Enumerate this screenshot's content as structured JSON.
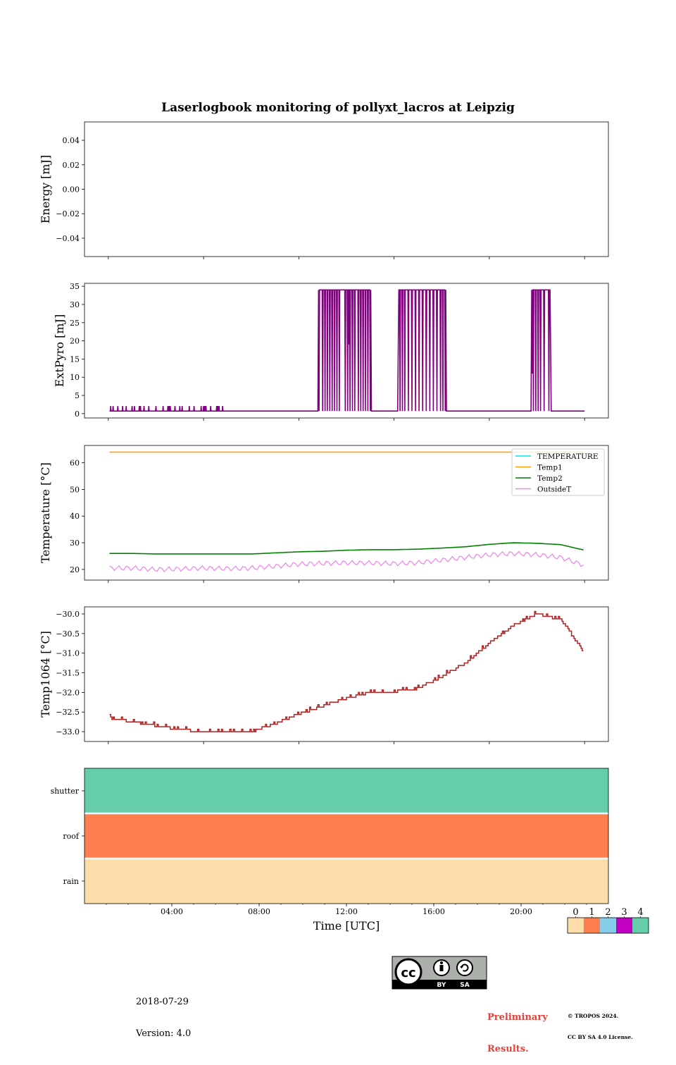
{
  "chart_data": {
    "type": "line",
    "title": "Laserlogbook monitoring of pollyxt_lacros at Leipzig",
    "panels": [
      {
        "id": "energy",
        "type": "line",
        "ylabel": "Energy [mJ]",
        "ylim": [
          -0.055,
          0.055
        ],
        "yticks": [
          -0.04,
          -0.02,
          0.0,
          0.02,
          0.04
        ],
        "ytick_labels": [
          "−0.04",
          "−0.02",
          "0.00",
          "0.02",
          "0.04"
        ],
        "series": []
      },
      {
        "id": "extpyro",
        "type": "line",
        "ylabel": "ExtPyro [mJ]",
        "ylim": [
          -1.2,
          35.8
        ],
        "yticks": [
          0,
          5,
          10,
          15,
          20,
          25,
          30,
          35
        ],
        "ytick_labels": [
          "0",
          "5",
          "10",
          "15",
          "20",
          "25",
          "30",
          "35"
        ],
        "series": [
          {
            "color": "#800080",
            "baseline": 0.7,
            "high": 34,
            "blips": [
              0.1,
              0.2,
              0.4,
              0.6,
              0.75,
              1.0,
              1.1,
              1.3,
              1.35,
              1.42,
              1.5,
              1.7,
              2.0,
              2.3,
              2.5,
              2.55,
              2.6,
              2.8,
              3.0,
              3.1,
              3.4,
              3.6,
              3.9,
              4.0,
              4.05,
              4.1,
              4.3,
              4.55,
              4.6,
              4.65,
              4.8
            ],
            "high_windows": [
              [
                8.8,
                11.05
              ],
              [
                12.2,
                14.2
              ],
              [
                17.8,
                18.6
              ]
            ],
            "dropouts": [
              8.85,
              8.92,
              9.0,
              9.1,
              9.2,
              9.3,
              9.4,
              9.5,
              9.6,
              9.7,
              9.82,
              9.95,
              10.05,
              10.15,
              10.25,
              10.35,
              10.5,
              10.6,
              10.7,
              10.8,
              10.9,
              11.0,
              12.25,
              12.35,
              12.45,
              12.6,
              12.75,
              12.9,
              13.05,
              13.2,
              13.35,
              13.5,
              13.65,
              13.8,
              13.95,
              14.05,
              14.15,
              17.85,
              17.95,
              18.05,
              18.15,
              18.3,
              18.5
            ],
            "partial_dips": [
              [
                9.7,
                23
              ],
              [
                10.1,
                19
              ],
              [
                10.6,
                24
              ],
              [
                13.92,
                14
              ],
              [
                14.12,
                4
              ],
              [
                17.8,
                11
              ]
            ]
          }
        ]
      },
      {
        "id": "temperature",
        "type": "line",
        "ylabel": "Temperature [°C]",
        "ylim": [
          16.0,
          66.5
        ],
        "yticks": [
          20,
          30,
          40,
          50,
          60
        ],
        "ytick_labels": [
          "20",
          "30",
          "40",
          "50",
          "60"
        ],
        "legend": {
          "loc": "upper right",
          "entries": [
            "TEMPERATURE",
            "Temp1",
            "Temp2",
            "OutsideT"
          ]
        },
        "series": [
          {
            "name": "TEMPERATURE",
            "color": "#00e5e5",
            "hours": [],
            "values": []
          },
          {
            "name": "Temp1",
            "color": "#ffa500",
            "hours": [
              0.05,
              20.0
            ],
            "values": [
              64,
              64
            ]
          },
          {
            "name": "Temp2",
            "color": "#008000",
            "hours": [
              0.05,
              1,
              2,
              3,
              4,
              5,
              6,
              7,
              8,
              9,
              10,
              11,
              12,
              13,
              14,
              15,
              16,
              17,
              18,
              19,
              20,
              21,
              22,
              23.0
            ],
            "values": [
              26.0,
              26.0,
              25.8,
              25.8,
              25.8,
              25.8,
              25.8,
              26.2,
              26.6,
              26.8,
              27.2,
              27.4,
              27.4,
              27.6,
              28.0,
              28.5,
              29.4,
              30.0,
              29.8,
              29.3,
              27.2,
              26.5,
              26.2,
              26.0
            ]
          },
          {
            "name": "OutsideT",
            "color": "#ee82ee",
            "hours": [
              0.05,
              1,
              2,
              3,
              4,
              5,
              6,
              7,
              8,
              9,
              10,
              11,
              12,
              13,
              14,
              15,
              16,
              17,
              18,
              19,
              20,
              21,
              22,
              23.0
            ],
            "values": [
              20.5,
              20.5,
              20.0,
              20.2,
              20.5,
              20.3,
              20.5,
              21.2,
              22.0,
              22.3,
              22.5,
              22.4,
              22.2,
              22.5,
              23.5,
              24.5,
              25.5,
              26.0,
              25.5,
              24.5,
              21.5,
              21.0,
              21.0,
              20.5
            ],
            "amplitude": 0.9
          }
        ]
      },
      {
        "id": "temp1064",
        "type": "line",
        "ylabel": "Temp1064 [°C]",
        "ylim": [
          -33.25,
          -29.82
        ],
        "yticks": [
          -33.0,
          -32.5,
          -32.0,
          -31.5,
          -31.0,
          -30.5,
          -30.0
        ],
        "ytick_labels": [
          "−33.0",
          "−32.5",
          "−32.0",
          "−31.5",
          "−31.0",
          "−30.5",
          "−30.0"
        ],
        "series": [
          {
            "color": "#b22222",
            "hours": [
              0.05,
              1,
              2,
              3,
              4,
              5,
              6,
              7,
              8,
              9,
              10,
              11,
              12,
              13,
              14,
              15,
              16,
              17,
              18,
              19,
              20,
              21,
              22,
              23.0
            ],
            "values": [
              -32.65,
              -32.75,
              -32.85,
              -32.95,
              -33.0,
              -33.0,
              -33.0,
              -32.8,
              -32.55,
              -32.35,
              -32.15,
              -32.0,
              -31.98,
              -31.9,
              -31.6,
              -31.25,
              -30.75,
              -30.3,
              -30.0,
              -30.15,
              -31.0,
              -31.8,
              -32.3,
              -32.55
            ]
          }
        ]
      },
      {
        "id": "flags",
        "type": "heatmap",
        "rows": [
          "shutter",
          "roof",
          "rain"
        ],
        "row_values": [
          4,
          1,
          0
        ],
        "xlabel": "Time [UTC]",
        "xtick_labels": [
          "04:00",
          "08:00",
          "12:00",
          "16:00",
          "20:00"
        ],
        "xticks_hours": [
          4,
          8,
          12,
          16,
          20
        ],
        "xlim_hours": [
          0.0,
          24.0
        ],
        "colorbar": {
          "ticks": [
            "0",
            "1",
            "2",
            "3",
            "4"
          ],
          "colors": [
            "#fddeab",
            "#fd7f4f",
            "#87ceeb",
            "#c200c2",
            "#66cdaa"
          ]
        }
      }
    ],
    "xlim_hours_upper": [
      -1.0,
      21.0
    ],
    "xticks_hours_upper": [
      0,
      4,
      8,
      12,
      16,
      20
    ]
  },
  "footer": {
    "date": "2018-07-29",
    "version": "Version: 4.0",
    "preliminary_line1": "Preliminary",
    "preliminary_line2": "Results.",
    "copyright_line1": "© TROPOS 2024.",
    "copyright_line2": "CC BY SA 4.0 License.",
    "license_badge": {
      "left": "BY",
      "right": "SA"
    }
  }
}
